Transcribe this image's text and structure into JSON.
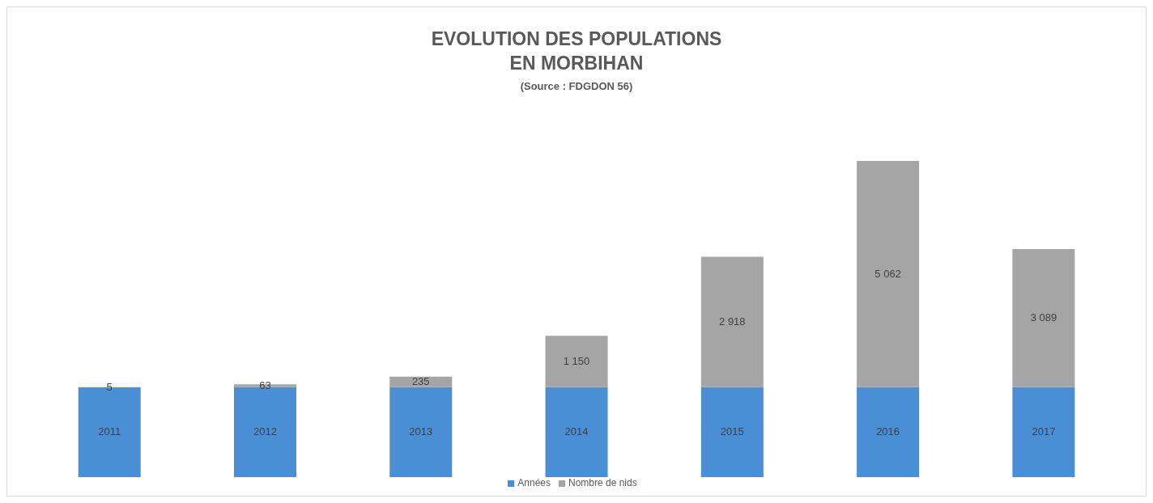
{
  "chart_data": {
    "type": "bar",
    "title": "EVOLUTION DES POPULATIONS\nEN MORBIHAN",
    "subtitle": "(Source : FDGDON 56)",
    "categories": [
      null,
      null,
      null,
      null,
      null,
      null,
      null
    ],
    "stacked": true,
    "legend": "bottom",
    "series": [
      {
        "name": "Années",
        "color": "#4a8ed6",
        "values": [
          2011,
          2012,
          2013,
          2014,
          2015,
          2016,
          2017
        ],
        "value_labels": [
          "2011",
          "2012",
          "2013",
          "2014",
          "2015",
          "2016",
          "2017"
        ]
      },
      {
        "name": "Nombre de nids",
        "color": "#a5a5a5",
        "values": [
          5,
          63,
          235,
          1150,
          2918,
          5062,
          3089
        ],
        "value_labels": [
          "5",
          "63",
          "235",
          "1 150",
          "2 918",
          "5 062",
          "3 089"
        ]
      }
    ]
  }
}
